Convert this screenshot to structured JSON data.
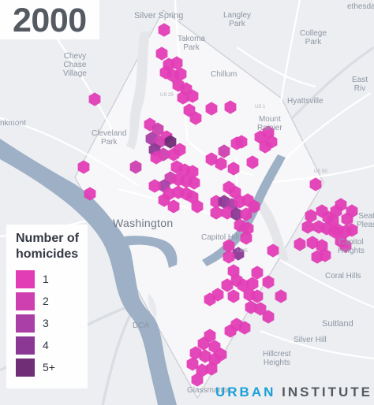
{
  "year": "2000",
  "legend": {
    "title_line1": "Number of",
    "title_line2": "homicides",
    "items": [
      {
        "label": "1",
        "color": "#e23db5"
      },
      {
        "label": "2",
        "color": "#ce40b0"
      },
      {
        "label": "3",
        "color": "#a93fa7"
      },
      {
        "label": "4",
        "color": "#8b3894"
      },
      {
        "label": "5+",
        "color": "#6f2e76"
      }
    ]
  },
  "branding": {
    "part1": "URBAN",
    "part2": "INSTITUTE"
  },
  "places": {
    "silver_spring": "Silver Spring",
    "langley_park": "Langley\nPark",
    "takoma_park": "Takoma\nPark",
    "college_park": "College\nPark",
    "chevy_chase_village": "Chevy\nChase\nVillage",
    "chillum": "Chillum",
    "east_riverdale": "East\nRiv",
    "hyattsville": "Hyattsville",
    "mount_rainier": "Mount\nRainier",
    "cleveland_park": "Cleveland\nPark",
    "washington": "Washington",
    "capitol_hill": "Capitol Hill",
    "seat_pleasant": "Seat\nPleas",
    "capitol_heights": "Capitol\nHeights",
    "coral_hills": "Coral Hills",
    "suitland": "Suitland",
    "silver_hill": "Silver Hill",
    "hillcrest_heights": "Hillcrest\nHeights",
    "glassmanor": "Glassmanor",
    "dca": "DCA",
    "bethesda_edge": "ethesda",
    "arlington_edge": "nkmont",
    "tiny_us29": "US 29",
    "tiny_us50": "US 50",
    "tiny_us1": "US 1",
    "tiny_i395": "I-395"
  },
  "map_data": {
    "hex_size": 8.6,
    "homicide_hexes": [
      {
        "c": [
          208,
          38
        ],
        "n": 1
      },
      {
        "c": [
          205,
          68
        ],
        "n": 1
      },
      {
        "c": [
          214,
          82
        ],
        "n": 1
      },
      {
        "c": [
          224,
          80
        ],
        "n": 1
      },
      {
        "c": [
          210,
          92
        ],
        "n": 1
      },
      {
        "c": [
          219,
          96
        ],
        "n": 1
      },
      {
        "c": [
          229,
          94
        ],
        "n": 1
      },
      {
        "c": [
          226,
          108
        ],
        "n": 1
      },
      {
        "c": [
          236,
          113
        ],
        "n": 1
      },
      {
        "c": [
          244,
          122
        ],
        "n": 1
      },
      {
        "c": [
          232,
          124
        ],
        "n": 1
      },
      {
        "c": [
          240,
          140
        ],
        "n": 1
      },
      {
        "c": [
          248,
          150
        ],
        "n": 1
      },
      {
        "c": [
          268,
          138
        ],
        "n": 1
      },
      {
        "c": [
          292,
          136
        ],
        "n": 1
      },
      {
        "c": [
          120,
          126
        ],
        "n": 1
      },
      {
        "c": [
          190,
          158
        ],
        "n": 1
      },
      {
        "c": [
          200,
          164
        ],
        "n": 2
      },
      {
        "c": [
          192,
          176
        ],
        "n": 3
      },
      {
        "c": [
          202,
          180
        ],
        "n": 2
      },
      {
        "c": [
          211,
          174
        ],
        "n": 1
      },
      {
        "c": [
          216,
          180
        ],
        "n": 5
      },
      {
        "c": [
          196,
          190
        ],
        "n": 4
      },
      {
        "c": [
          207,
          196
        ],
        "n": 2
      },
      {
        "c": [
          198,
          200
        ],
        "n": 1
      },
      {
        "c": [
          220,
          196
        ],
        "n": 1
      },
      {
        "c": [
          228,
          190
        ],
        "n": 1
      },
      {
        "c": [
          172,
          212
        ],
        "n": 2
      },
      {
        "c": [
          106,
          212
        ],
        "n": 1
      },
      {
        "c": [
          114,
          246
        ],
        "n": 1
      },
      {
        "c": [
          300,
          182
        ],
        "n": 1
      },
      {
        "c": [
          284,
          192
        ],
        "n": 2
      },
      {
        "c": [
          268,
          202
        ],
        "n": 1
      },
      {
        "c": [
          280,
          208
        ],
        "n": 1
      },
      {
        "c": [
          296,
          214
        ],
        "n": 1
      },
      {
        "c": [
          306,
          180
        ],
        "n": 1
      },
      {
        "c": [
          320,
          206
        ],
        "n": 1
      },
      {
        "c": [
          330,
          174
        ],
        "n": 1
      },
      {
        "c": [
          340,
          168
        ],
        "n": 1
      },
      {
        "c": [
          336,
          186
        ],
        "n": 1
      },
      {
        "c": [
          344,
          180
        ],
        "n": 1
      },
      {
        "c": [
          224,
          212
        ],
        "n": 1
      },
      {
        "c": [
          234,
          216
        ],
        "n": 1
      },
      {
        "c": [
          244,
          218
        ],
        "n": 1
      },
      {
        "c": [
          216,
          226
        ],
        "n": 2
      },
      {
        "c": [
          208,
          236
        ],
        "n": 3
      },
      {
        "c": [
          196,
          236
        ],
        "n": 1
      },
      {
        "c": [
          226,
          228
        ],
        "n": 1
      },
      {
        "c": [
          236,
          230
        ],
        "n": 1
      },
      {
        "c": [
          246,
          232
        ],
        "n": 1
      },
      {
        "c": [
          214,
          246
        ],
        "n": 1
      },
      {
        "c": [
          226,
          244
        ],
        "n": 1
      },
      {
        "c": [
          236,
          246
        ],
        "n": 1
      },
      {
        "c": [
          208,
          254
        ],
        "n": 1
      },
      {
        "c": [
          220,
          262
        ],
        "n": 1
      },
      {
        "c": [
          244,
          250
        ],
        "n": 1
      },
      {
        "c": [
          250,
          262
        ],
        "n": 1
      },
      {
        "c": [
          290,
          238
        ],
        "n": 1
      },
      {
        "c": [
          298,
          244
        ],
        "n": 1
      },
      {
        "c": [
          274,
          256
        ],
        "n": 1
      },
      {
        "c": [
          284,
          256
        ],
        "n": 4
      },
      {
        "c": [
          294,
          260
        ],
        "n": 3
      },
      {
        "c": [
          304,
          256
        ],
        "n": 1
      },
      {
        "c": [
          314,
          254
        ],
        "n": 1
      },
      {
        "c": [
          322,
          262
        ],
        "n": 1
      },
      {
        "c": [
          274,
          270
        ],
        "n": 1
      },
      {
        "c": [
          288,
          270
        ],
        "n": 1
      },
      {
        "c": [
          300,
          272
        ],
        "n": 4
      },
      {
        "c": [
          312,
          272
        ],
        "n": 1
      },
      {
        "c": [
          304,
          286
        ],
        "n": 1
      },
      {
        "c": [
          314,
          290
        ],
        "n": 1
      },
      {
        "c": [
          312,
          302
        ],
        "n": 1
      },
      {
        "c": [
          302,
          322
        ],
        "n": 4
      },
      {
        "c": [
          290,
          312
        ],
        "n": 1
      },
      {
        "c": [
          290,
          326
        ],
        "n": 1
      },
      {
        "c": [
          346,
          318
        ],
        "n": 1
      },
      {
        "c": [
          296,
          344
        ],
        "n": 1
      },
      {
        "c": [
          300,
          356
        ],
        "n": 1
      },
      {
        "c": [
          288,
          362
        ],
        "n": 1
      },
      {
        "c": [
          308,
          362
        ],
        "n": 1
      },
      {
        "c": [
          320,
          360
        ],
        "n": 1
      },
      {
        "c": [
          326,
          346
        ],
        "n": 1
      },
      {
        "c": [
          340,
          358
        ],
        "n": 1
      },
      {
        "c": [
          276,
          374
        ],
        "n": 1
      },
      {
        "c": [
          296,
          376
        ],
        "n": 1
      },
      {
        "c": [
          316,
          374
        ],
        "n": 1
      },
      {
        "c": [
          326,
          376
        ],
        "n": 1
      },
      {
        "c": [
          266,
          380
        ],
        "n": 1
      },
      {
        "c": [
          356,
          376
        ],
        "n": 1
      },
      {
        "c": [
          318,
          390
        ],
        "n": 1
      },
      {
        "c": [
          330,
          392
        ],
        "n": 1
      },
      {
        "c": [
          340,
          402
        ],
        "n": 1
      },
      {
        "c": [
          300,
          412
        ],
        "n": 1
      },
      {
        "c": [
          310,
          416
        ],
        "n": 1
      },
      {
        "c": [
          292,
          420
        ],
        "n": 1
      },
      {
        "c": [
          266,
          426
        ],
        "n": 1
      },
      {
        "c": [
          258,
          436
        ],
        "n": 1
      },
      {
        "c": [
          272,
          440
        ],
        "n": 1
      },
      {
        "c": [
          248,
          448
        ],
        "n": 1
      },
      {
        "c": [
          260,
          452
        ],
        "n": 1
      },
      {
        "c": [
          272,
          456
        ],
        "n": 1
      },
      {
        "c": [
          280,
          450
        ],
        "n": 1
      },
      {
        "c": [
          244,
          462
        ],
        "n": 1
      },
      {
        "c": [
          256,
          470
        ],
        "n": 1
      },
      {
        "c": [
          268,
          468
        ],
        "n": 1
      },
      {
        "c": [
          250,
          482
        ],
        "n": 1
      },
      {
        "c": [
          400,
          234
        ],
        "n": 1
      },
      {
        "c": [
          408,
          268
        ],
        "n": 1
      },
      {
        "c": [
          416,
          276
        ],
        "n": 1
      },
      {
        "c": [
          394,
          274
        ],
        "n": 1
      },
      {
        "c": [
          390,
          288
        ],
        "n": 1
      },
      {
        "c": [
          404,
          288
        ],
        "n": 1
      },
      {
        "c": [
          414,
          290
        ],
        "n": 1
      },
      {
        "c": [
          426,
          268
        ],
        "n": 1
      },
      {
        "c": [
          432,
          260
        ],
        "n": 1
      },
      {
        "c": [
          422,
          280
        ],
        "n": 1
      },
      {
        "c": [
          428,
          292
        ],
        "n": 1
      },
      {
        "c": [
          440,
          278
        ],
        "n": 1
      },
      {
        "c": [
          446,
          268
        ],
        "n": 1
      },
      {
        "c": [
          438,
          294
        ],
        "n": 1
      },
      {
        "c": [
          446,
          292
        ],
        "n": 1
      },
      {
        "c": [
          380,
          310
        ],
        "n": 1
      },
      {
        "c": [
          396,
          308
        ],
        "n": 1
      },
      {
        "c": [
          408,
          312
        ],
        "n": 1
      },
      {
        "c": [
          402,
          326
        ],
        "n": 1
      },
      {
        "c": [
          412,
          324
        ],
        "n": 1
      },
      {
        "c": [
          432,
          306
        ],
        "n": 1
      },
      {
        "c": [
          424,
          294
        ],
        "n": 1
      },
      {
        "c": [
          438,
          312
        ],
        "n": 1
      }
    ]
  }
}
